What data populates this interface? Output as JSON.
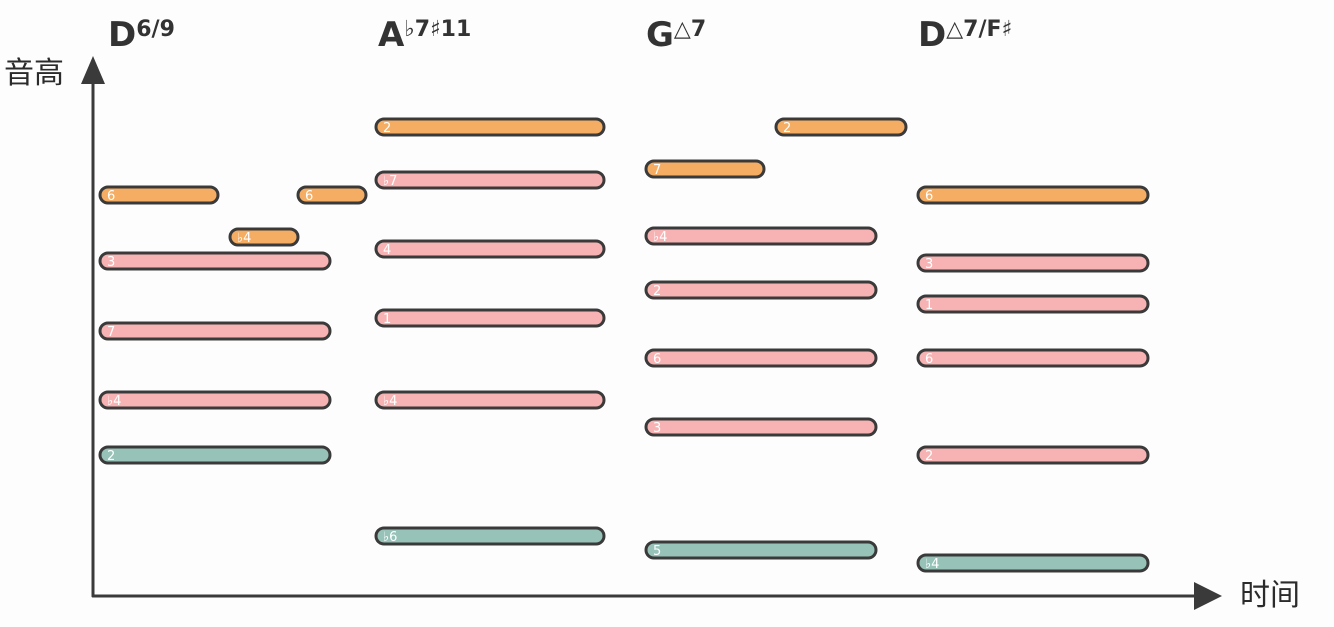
{
  "axes": {
    "y_label": "音高",
    "x_label": "时间"
  },
  "colors": {
    "orange": "#f4ad63",
    "pink": "#f7b3b3",
    "green": "#97c2b8",
    "outline": "#3a3a3a",
    "axis": "#3a3a3a"
  },
  "chords": [
    {
      "name": "D",
      "sup": "6/9",
      "notes": [
        {
          "label": "6",
          "color": "orange"
        },
        {
          "label": "6",
          "color": "orange"
        },
        {
          "label": "♭4",
          "color": "orange"
        },
        {
          "label": "3",
          "color": "pink"
        },
        {
          "label": "7",
          "color": "pink"
        },
        {
          "label": "♭4",
          "color": "pink"
        },
        {
          "label": "2",
          "color": "green"
        }
      ]
    },
    {
      "name": "A",
      "sup": "♭7♯11",
      "notes": [
        {
          "label": "2",
          "color": "orange"
        },
        {
          "label": "♭7",
          "color": "pink"
        },
        {
          "label": "4",
          "color": "pink"
        },
        {
          "label": "1",
          "color": "pink"
        },
        {
          "label": "♭4",
          "color": "pink"
        },
        {
          "label": "♭6",
          "color": "green"
        }
      ]
    },
    {
      "name": "G",
      "sup": "△7",
      "notes": [
        {
          "label": "2",
          "color": "orange"
        },
        {
          "label": "7",
          "color": "orange"
        },
        {
          "label": "♭4",
          "color": "pink"
        },
        {
          "label": "2",
          "color": "pink"
        },
        {
          "label": "6",
          "color": "pink"
        },
        {
          "label": "3",
          "color": "pink"
        },
        {
          "label": "5",
          "color": "green"
        }
      ]
    },
    {
      "name": "D",
      "sup": "△7/F♯",
      "notes": [
        {
          "label": "6",
          "color": "orange"
        },
        {
          "label": "3",
          "color": "pink"
        },
        {
          "label": "1",
          "color": "pink"
        },
        {
          "label": "6",
          "color": "pink"
        },
        {
          "label": "2",
          "color": "pink"
        },
        {
          "label": "♭4",
          "color": "green"
        }
      ]
    }
  ]
}
